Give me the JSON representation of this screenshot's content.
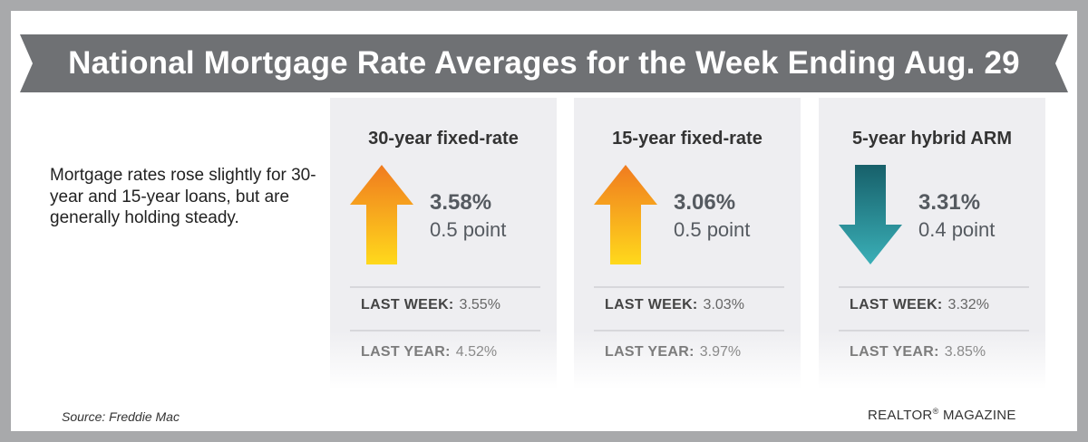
{
  "header": {
    "title": "National Mortgage Rate Averages for the Week Ending Aug. 29"
  },
  "intro": {
    "text": "Mortgage rates rose slightly for 30-year and 15-year loans, but are generally holding steady."
  },
  "cards": [
    {
      "title": "30-year fixed-rate",
      "direction": "up",
      "arrow_icon": "arrow-up-icon",
      "rate": "3.58%",
      "change": "0.5 point",
      "last_week_label": "LAST WEEK:",
      "last_week_value": "3.55%",
      "last_year_label": "LAST YEAR:",
      "last_year_value": "4.52%"
    },
    {
      "title": "15-year fixed-rate",
      "direction": "up",
      "arrow_icon": "arrow-up-icon",
      "rate": "3.06%",
      "change": "0.5 point",
      "last_week_label": "LAST WEEK:",
      "last_week_value": "3.03%",
      "last_year_label": "LAST YEAR:",
      "last_year_value": "3.97%"
    },
    {
      "title": "5-year hybrid ARM",
      "direction": "down",
      "arrow_icon": "arrow-down-icon",
      "rate": "3.31%",
      "change": "0.4 point",
      "last_week_label": "LAST WEEK:",
      "last_week_value": "3.32%",
      "last_year_label": "LAST YEAR:",
      "last_year_value": "3.85%"
    }
  ],
  "footer": {
    "source": "Source: Freddie Mac",
    "brand_name": "REALTOR",
    "brand_mark": "®",
    "brand_suffix": " MAGAZINE"
  },
  "colors": {
    "background_frame": "#a8a9ab",
    "banner": "#6f7174",
    "up_arrow_top": "#f07b1f",
    "up_arrow_bottom": "#ffd91c",
    "down_arrow_top": "#17606a",
    "down_arrow_bottom": "#3aafb7"
  }
}
